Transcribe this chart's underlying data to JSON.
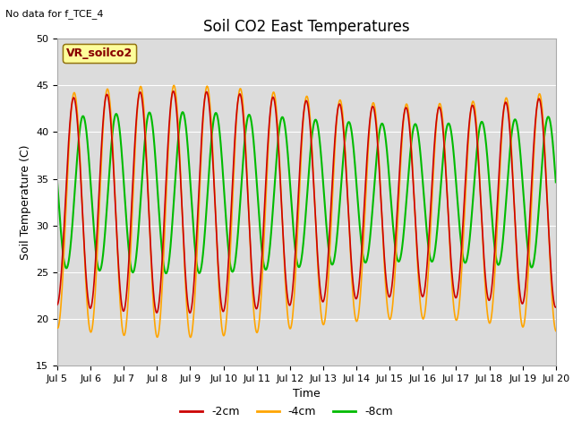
{
  "title": "Soil CO2 East Temperatures",
  "xlabel": "Time",
  "ylabel": "Soil Temperature (C)",
  "annotation_text": "No data for f_TCE_4",
  "legend_box_text": "VR_soilco2",
  "ylim": [
    15,
    50
  ],
  "xlim_days": [
    5,
    20
  ],
  "bg_color": "#dcdcdc",
  "fig_facecolor": "#ffffff",
  "series": {
    "-2cm": {
      "color": "#cc0000",
      "linewidth": 1.2
    },
    "-4cm": {
      "color": "#ffa500",
      "linewidth": 1.2
    },
    "-8cm": {
      "color": "#00bb00",
      "linewidth": 1.5
    }
  },
  "xtick_labels": [
    "Jul 5",
    "Jul 6",
    "Jul 7",
    "Jul 8",
    "Jul 9",
    "Jul 10",
    "Jul 11",
    "Jul 12",
    "Jul 13",
    "Jul 14",
    "Jul 15",
    "Jul 16",
    "Jul 17",
    "Jul 18",
    "Jul 19",
    "Jul 20"
  ],
  "ytick_labels": [
    15,
    20,
    25,
    30,
    35,
    40,
    45,
    50
  ],
  "grid_color": "#ffffff",
  "title_fontsize": 12,
  "axis_label_fontsize": 9,
  "tick_fontsize": 8,
  "legend_fontsize": 9
}
